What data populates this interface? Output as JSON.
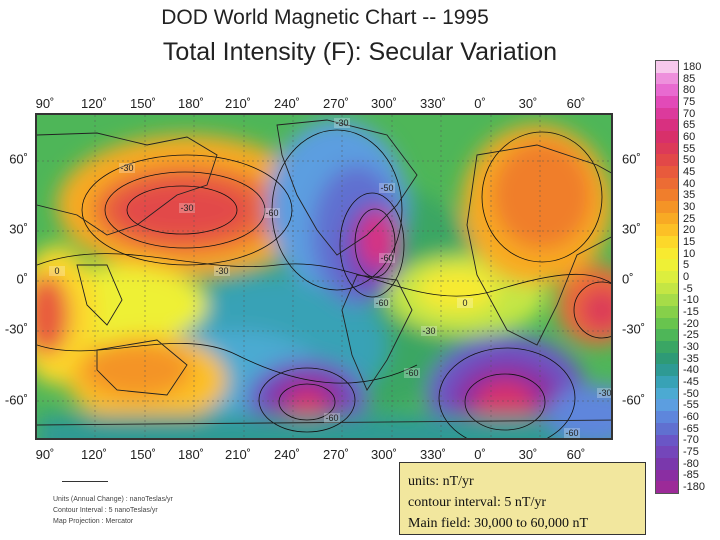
{
  "header": {
    "title": "DOD World Magnetic Chart  --  1995",
    "subtitle": "Total Intensity (F): Secular Variation"
  },
  "map": {
    "longitude_labels": [
      "90˚",
      "120˚",
      "150˚",
      "180˚",
      "210˚",
      "240˚",
      "270˚",
      "300˚",
      "330˚",
      "0˚",
      "30˚",
      "60˚"
    ],
    "latitude_labels": [
      "60˚",
      "30˚",
      "0˚",
      "-30˚",
      "-60˚"
    ],
    "contour_labels": [
      "-30",
      "-50",
      "-30",
      "-60",
      "-30",
      "-60",
      "-60",
      "-60",
      "0",
      "-30",
      "0",
      "-60",
      "-30",
      "-30",
      "-60"
    ]
  },
  "legend": {
    "values": [
      "180",
      "85",
      "80",
      "75",
      "70",
      "65",
      "60",
      "55",
      "50",
      "45",
      "40",
      "35",
      "30",
      "25",
      "20",
      "15",
      "10",
      "5",
      "0",
      "-5",
      "-10",
      "-15",
      "-20",
      "-25",
      "-30",
      "-35",
      "-40",
      "-45",
      "-50",
      "-55",
      "-60",
      "-65",
      "-70",
      "-75",
      "-80",
      "-85",
      "-180"
    ],
    "colors": [
      "#f7c8ec",
      "#ee90dc",
      "#e86ad0",
      "#e24ab8",
      "#dc3a9c",
      "#d83080",
      "#d8306a",
      "#dc3a58",
      "#e24848",
      "#e85a3c",
      "#ec6c34",
      "#f07e2c",
      "#f49426",
      "#f8aa24",
      "#fcc026",
      "#fcd82a",
      "#f8ea30",
      "#eef036",
      "#dcee3e",
      "#c4e644",
      "#a6dc48",
      "#86d04a",
      "#68c44e",
      "#4eb658",
      "#3aa664",
      "#2e9a76",
      "#2e9a94",
      "#38a2b6",
      "#4caad2",
      "#5c9ee0",
      "#5e86dc",
      "#6070d0",
      "#6a56c6",
      "#7446ba",
      "#7a38ac",
      "#8a2ea2",
      "#9c2a98"
    ]
  },
  "notes": {
    "line1": "Units (Annual Change) : nanoTeslas/yr",
    "line2": "Contour Interval : 5 nanoTeslas/yr",
    "line3": "Map Projection : Mercator"
  },
  "units_box": {
    "line1": "units: nT/yr",
    "line2": "contour interval: 5 nT/yr",
    "line3": "Main field: 30,000 to 60,000 nT"
  }
}
